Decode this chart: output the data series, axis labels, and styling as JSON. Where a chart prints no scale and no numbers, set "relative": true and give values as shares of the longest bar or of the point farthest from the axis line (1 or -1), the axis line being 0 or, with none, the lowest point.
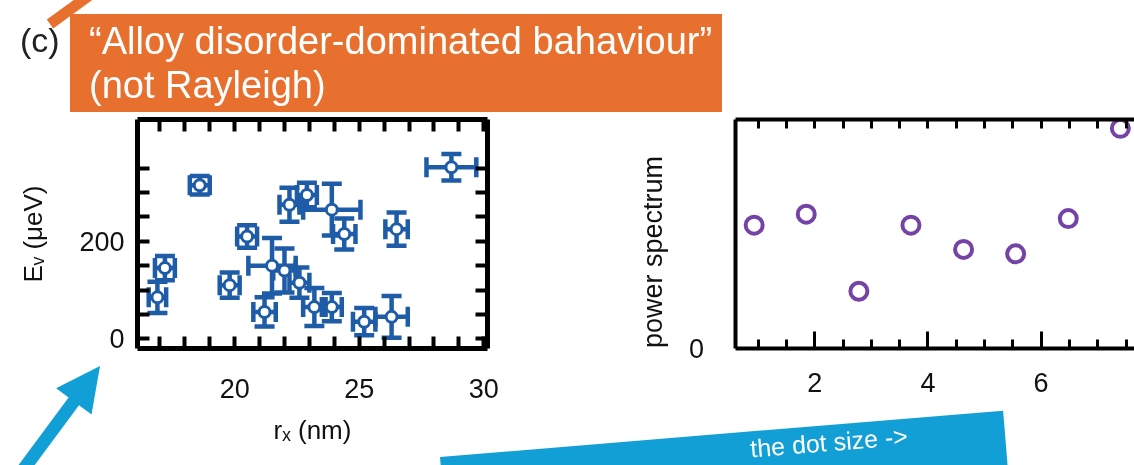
{
  "chart_data": [
    {
      "type": "scatter",
      "title": "(c)",
      "xlabel": "rₓ (nm)",
      "ylabel": "Eᵥ (μeV)",
      "color": "#1f5ca8",
      "marker": "circle",
      "x": [
        16.9,
        17.2,
        18.6,
        19.8,
        20.5,
        21.2,
        21.5,
        22.0,
        22.2,
        22.9,
        22.6,
        23.9,
        24.4,
        23.2,
        23.9,
        25.2,
        26.3,
        26.5,
        28.7
      ],
      "values": [
        85,
        145,
        315,
        110,
        210,
        55,
        150,
        140,
        275,
        295,
        115,
        265,
        215,
        65,
        65,
        35,
        45,
        225,
        352
      ],
      "errors": [
        32,
        25,
        19,
        26,
        23,
        30,
        57,
        45,
        35,
        25,
        31,
        53,
        32,
        39,
        29,
        28,
        43,
        34,
        27
      ],
      "xerrors": [
        0.35,
        0.4,
        0.4,
        0.4,
        0.4,
        0.45,
        0.95,
        0.45,
        0.4,
        0.4,
        0.4,
        1.15,
        0.45,
        0.45,
        0.4,
        0.45,
        0.65,
        0.45,
        1.0
      ],
      "xlim": [
        16.1,
        30.15
      ],
      "ylim": [
        -20,
        450
      ],
      "xticks": [
        {
          "value": 17,
          "label": null
        },
        {
          "value": 18,
          "label": null
        },
        {
          "value": 19,
          "label": null
        },
        20,
        {
          "value": 21,
          "label": null
        },
        {
          "value": 22,
          "label": null
        },
        {
          "value": 23,
          "label": null
        },
        {
          "value": 24,
          "label": null
        },
        25,
        {
          "value": 26,
          "label": null
        },
        {
          "value": 27,
          "label": null
        },
        {
          "value": 28,
          "label": null
        },
        {
          "value": 29,
          "label": null
        },
        30
      ],
      "yticks": [
        0,
        {
          "value": 50,
          "label": null
        },
        {
          "value": 100,
          "label": null
        },
        {
          "value": 150,
          "label": null
        },
        200,
        {
          "value": 250,
          "label": null
        },
        {
          "value": 300,
          "label": null
        },
        {
          "value": 350,
          "label": null
        }
      ],
      "annotations": [
        "“Alloy disorder-dominated bahaviour”\n(not Rayleigh)"
      ]
    },
    {
      "type": "scatter",
      "ylabel": "power spectrum",
      "color": "#7443a5",
      "marker": "circle",
      "relative": true,
      "x": [
        0.93,
        1.85,
        2.78,
        3.7,
        4.63,
        5.55,
        6.48,
        7.4
      ],
      "values": [
        0.56,
        0.61,
        0.26,
        0.56,
        0.45,
        0.43,
        0.59,
        1
      ],
      "xlim": [
        0.6,
        7.65
      ],
      "xticks": [
        {
          "value": 1,
          "label": null
        },
        {
          "value": 1.5,
          "label": null
        },
        2,
        {
          "value": 2.5,
          "label": null
        },
        {
          "value": 3,
          "label": null
        },
        {
          "value": 3.5,
          "label": null
        },
        4,
        {
          "value": 4.5,
          "label": null
        },
        {
          "value": 5,
          "label": null
        },
        {
          "value": 5.5,
          "label": null
        },
        6,
        {
          "value": 6.5,
          "label": null
        },
        {
          "value": 7,
          "label": null
        },
        {
          "value": 7.5,
          "label": null
        }
      ],
      "annotations": [
        "0",
        "the dot size ->"
      ]
    }
  ]
}
